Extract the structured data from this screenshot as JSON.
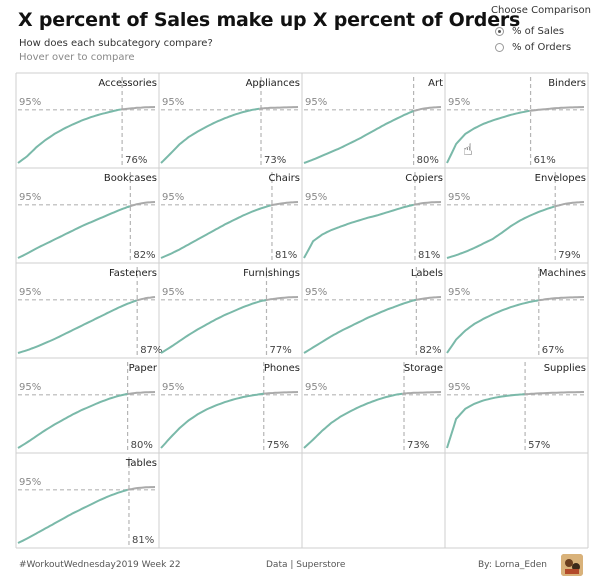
{
  "header": {
    "title": "X percent of Sales make up X percent of Orders",
    "subtitle": "How does each subcategory compare?",
    "hint": "Hover over to compare"
  },
  "toggle": {
    "title": "Choose Comparison",
    "options": [
      "% of Sales",
      "% of Orders"
    ],
    "selected": "% of Sales"
  },
  "footer": {
    "left": "#WorkoutWednesday2019 Week 22",
    "center": "Data | Superstore",
    "right": "By: Lorna_Eden"
  },
  "colors": {
    "line": "#7ab9a9",
    "tail": "#aaaaaa",
    "ref": "#b5b5b5",
    "border": "#cfcfcf"
  },
  "chart_data": {
    "type": "line",
    "threshold_label": "95%",
    "threshold": 0.95,
    "panels": [
      {
        "name": "Accessories",
        "pct": "76%",
        "x95": 0.76,
        "curve": [
          0.0,
          0.12,
          0.28,
          0.41,
          0.52,
          0.61,
          0.69,
          0.76,
          0.82,
          0.87,
          0.91,
          0.95,
          0.97,
          0.985,
          0.995,
          1.0
        ]
      },
      {
        "name": "Appliances",
        "pct": "73%",
        "x95": 0.73,
        "curve": [
          0.0,
          0.16,
          0.33,
          0.46,
          0.56,
          0.65,
          0.73,
          0.8,
          0.86,
          0.91,
          0.95,
          0.975,
          0.985,
          0.99,
          0.995,
          1.0
        ]
      },
      {
        "name": "Art",
        "pct": "80%",
        "x95": 0.8,
        "curve": [
          0.0,
          0.06,
          0.13,
          0.2,
          0.27,
          0.35,
          0.43,
          0.52,
          0.61,
          0.7,
          0.78,
          0.86,
          0.93,
          0.97,
          0.99,
          1.0
        ]
      },
      {
        "name": "Binders",
        "pct": "61%",
        "x95": 0.61,
        "curve": [
          0.0,
          0.34,
          0.52,
          0.62,
          0.7,
          0.76,
          0.81,
          0.86,
          0.9,
          0.93,
          0.95,
          0.965,
          0.98,
          0.99,
          0.995,
          1.0
        ]
      },
      {
        "name": "Bookcases",
        "pct": "82%",
        "x95": 0.82,
        "curve": [
          0.0,
          0.08,
          0.17,
          0.25,
          0.33,
          0.41,
          0.49,
          0.57,
          0.64,
          0.71,
          0.78,
          0.85,
          0.91,
          0.96,
          0.99,
          1.0
        ]
      },
      {
        "name": "Chairs",
        "pct": "81%",
        "x95": 0.81,
        "curve": [
          0.0,
          0.07,
          0.15,
          0.24,
          0.33,
          0.42,
          0.51,
          0.6,
          0.68,
          0.76,
          0.83,
          0.89,
          0.94,
          0.97,
          0.99,
          1.0
        ]
      },
      {
        "name": "Copiers",
        "pct": "81%",
        "x95": 0.81,
        "curve": [
          0.0,
          0.3,
          0.42,
          0.5,
          0.56,
          0.62,
          0.67,
          0.72,
          0.76,
          0.81,
          0.86,
          0.91,
          0.95,
          0.98,
          0.995,
          1.0
        ]
      },
      {
        "name": "Envelopes",
        "pct": "79%",
        "x95": 0.79,
        "curve": [
          0.0,
          0.05,
          0.11,
          0.18,
          0.26,
          0.34,
          0.45,
          0.57,
          0.67,
          0.75,
          0.82,
          0.88,
          0.93,
          0.97,
          0.99,
          1.0
        ]
      },
      {
        "name": "Fasteners",
        "pct": "87%",
        "x95": 0.87,
        "curve": [
          0.0,
          0.05,
          0.11,
          0.18,
          0.25,
          0.33,
          0.41,
          0.49,
          0.57,
          0.65,
          0.73,
          0.81,
          0.88,
          0.94,
          0.98,
          1.0
        ]
      },
      {
        "name": "Furnishings",
        "pct": "77%",
        "x95": 0.77,
        "curve": [
          0.0,
          0.1,
          0.21,
          0.32,
          0.42,
          0.51,
          0.6,
          0.68,
          0.75,
          0.82,
          0.88,
          0.93,
          0.96,
          0.98,
          0.995,
          1.0
        ]
      },
      {
        "name": "Labels",
        "pct": "82%",
        "x95": 0.82,
        "curve": [
          0.0,
          0.1,
          0.2,
          0.3,
          0.39,
          0.47,
          0.55,
          0.63,
          0.7,
          0.77,
          0.83,
          0.89,
          0.94,
          0.97,
          0.99,
          1.0
        ]
      },
      {
        "name": "Machines",
        "pct": "67%",
        "x95": 0.67,
        "curve": [
          0.0,
          0.24,
          0.4,
          0.52,
          0.61,
          0.69,
          0.76,
          0.82,
          0.87,
          0.91,
          0.94,
          0.965,
          0.98,
          0.99,
          0.995,
          1.0
        ]
      },
      {
        "name": "Paper",
        "pct": "80%",
        "x95": 0.8,
        "curve": [
          0.0,
          0.1,
          0.21,
          0.32,
          0.42,
          0.51,
          0.6,
          0.68,
          0.75,
          0.82,
          0.88,
          0.93,
          0.965,
          0.985,
          0.995,
          1.0
        ]
      },
      {
        "name": "Phones",
        "pct": "75%",
        "x95": 0.75,
        "curve": [
          0.0,
          0.18,
          0.35,
          0.49,
          0.6,
          0.69,
          0.76,
          0.82,
          0.87,
          0.91,
          0.94,
          0.965,
          0.98,
          0.99,
          0.995,
          1.0
        ]
      },
      {
        "name": "Storage",
        "pct": "73%",
        "x95": 0.73,
        "curve": [
          0.0,
          0.15,
          0.31,
          0.45,
          0.56,
          0.65,
          0.73,
          0.8,
          0.86,
          0.91,
          0.95,
          0.975,
          0.985,
          0.99,
          0.995,
          1.0
        ]
      },
      {
        "name": "Supplies",
        "pct": "57%",
        "x95": 0.57,
        "curve": [
          0.0,
          0.52,
          0.7,
          0.79,
          0.85,
          0.89,
          0.92,
          0.94,
          0.955,
          0.965,
          0.975,
          0.982,
          0.988,
          0.993,
          0.997,
          1.0
        ]
      },
      {
        "name": "Tables",
        "pct": "81%",
        "x95": 0.81,
        "curve": [
          0.0,
          0.08,
          0.17,
          0.26,
          0.35,
          0.44,
          0.53,
          0.61,
          0.69,
          0.77,
          0.84,
          0.9,
          0.95,
          0.98,
          0.995,
          1.0
        ]
      }
    ]
  }
}
